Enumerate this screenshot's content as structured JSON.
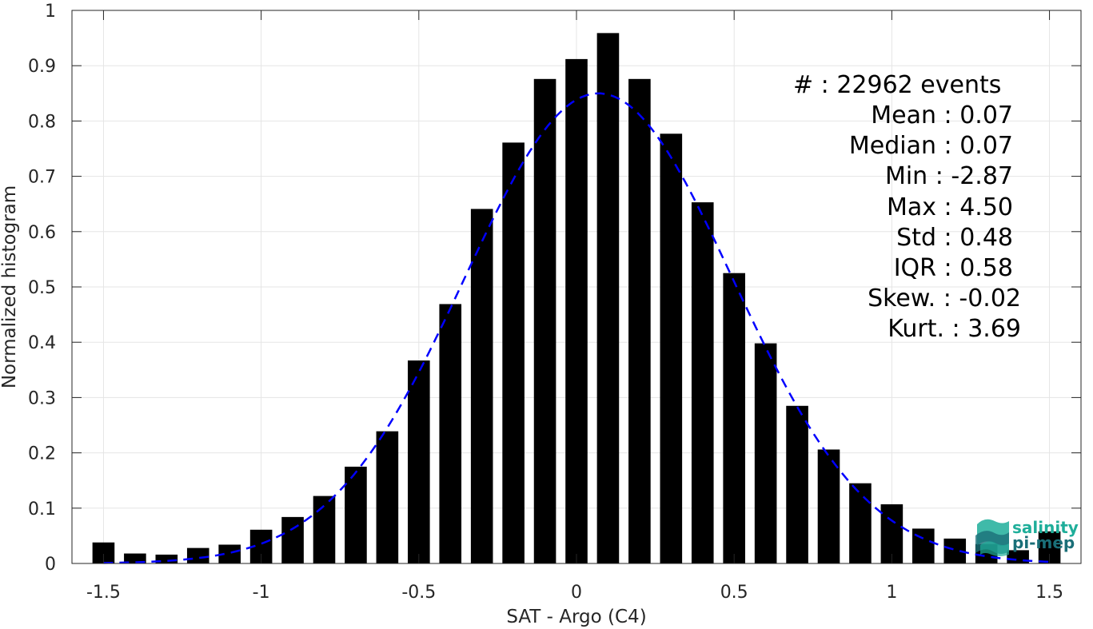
{
  "chart_data": {
    "type": "bar",
    "xlabel": "SAT - Argo (C4)",
    "ylabel": "Normalized histogram",
    "xlim": [
      -1.6,
      1.6
    ],
    "ylim": [
      0,
      1
    ],
    "xticks": [
      -1.5,
      -1,
      -0.5,
      0,
      0.5,
      1,
      1.5
    ],
    "xtick_labels": [
      "-1.5",
      "-1",
      "-0.5",
      "0",
      "0.5",
      "1",
      "1.5"
    ],
    "yticks": [
      0,
      0.1,
      0.2,
      0.3,
      0.4,
      0.5,
      0.6,
      0.7,
      0.8,
      0.9,
      1
    ],
    "ytick_labels": [
      "0",
      "0.1",
      "0.2",
      "0.3",
      "0.4",
      "0.5",
      "0.6",
      "0.7",
      "0.8",
      "0.9",
      "1"
    ],
    "grid": true,
    "bar_width": 0.07,
    "bars": {
      "x": [
        -1.5,
        -1.4,
        -1.3,
        -1.2,
        -1.1,
        -1.0,
        -0.9,
        -0.8,
        -0.7,
        -0.6,
        -0.5,
        -0.4,
        -0.3,
        -0.2,
        -0.1,
        0.0,
        0.1,
        0.2,
        0.3,
        0.4,
        0.5,
        0.6,
        0.7,
        0.8,
        0.9,
        1.0,
        1.1,
        1.2,
        1.3,
        1.4,
        1.5
      ],
      "values": [
        0.038,
        0.018,
        0.016,
        0.028,
        0.034,
        0.061,
        0.084,
        0.122,
        0.175,
        0.239,
        0.367,
        0.469,
        0.641,
        0.761,
        0.876,
        0.912,
        0.959,
        0.876,
        0.777,
        0.653,
        0.525,
        0.398,
        0.285,
        0.206,
        0.145,
        0.107,
        0.063,
        0.045,
        0.035,
        0.024,
        0.058
      ],
      "color": "#000000"
    },
    "fit_curve": {
      "type": "gaussian",
      "mean": 0.07,
      "peak": 0.85,
      "sigma": 0.425,
      "x_range": [
        -1.5,
        1.5
      ],
      "color": "#0000ff",
      "style": "dashed"
    },
    "annotations": [
      {
        "label": "#  : 22962 events"
      },
      {
        "label": "Mean : 0.07"
      },
      {
        "label": "Median : 0.07"
      },
      {
        "label": "Min : -2.87"
      },
      {
        "label": "Max : 4.50"
      },
      {
        "label": "Std : 0.48"
      },
      {
        "label": "IQR : 0.58"
      },
      {
        "label": "Skew. : -0.02"
      },
      {
        "label": "Kurt. : 3.69"
      }
    ]
  },
  "logo": {
    "line1": "salinity",
    "line2": "pi-mep",
    "color1": "#1fae9a",
    "color2": "#1a6f78"
  }
}
